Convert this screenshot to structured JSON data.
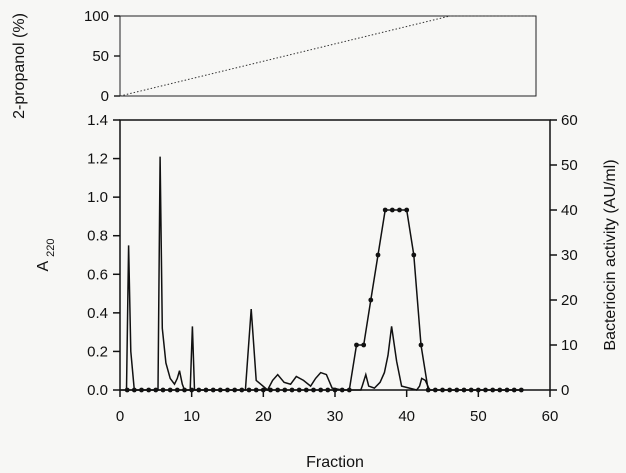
{
  "chart_data": [
    {
      "type": "line",
      "panel": "top",
      "ylabel": "2-propanol (%)",
      "ylim": [
        0,
        100
      ],
      "yticks": [
        "0",
        "50",
        "100"
      ],
      "xlim": [
        0,
        58
      ],
      "grid": false,
      "series": [
        {
          "style": "dotted",
          "x": [
            0,
            46,
            58
          ],
          "y": [
            0,
            100,
            100
          ]
        }
      ]
    },
    {
      "type": "line",
      "panel": "bottom",
      "xlabel": "Fraction",
      "ylabel": "A",
      "ylabel_subscript": "220",
      "y2label": "Bacteriocin activity (AU/ml)",
      "xlim": [
        0,
        60
      ],
      "ylim": [
        0,
        1.4
      ],
      "y2lim": [
        0,
        60
      ],
      "xticks": [
        "0",
        "10",
        "20",
        "30",
        "40",
        "50",
        "60"
      ],
      "yticks": [
        "0.0",
        "0.2",
        "0.4",
        "0.6",
        "0.8",
        "1.0",
        "1.2",
        "1.4"
      ],
      "y2ticks": [
        "0",
        "10",
        "20",
        "30",
        "40",
        "50",
        "60"
      ],
      "grid": false,
      "series": [
        {
          "axis": "left",
          "style": "line",
          "x": [
            0,
            0.9,
            1.2,
            1.5,
            2.0,
            5.3,
            5.6,
            5.9,
            6.4,
            7.0,
            7.6,
            8.0,
            8.3,
            8.7,
            9.0,
            9.8,
            10.1,
            10.4,
            17.5,
            18.3,
            19.0,
            20.6,
            21.3,
            22.0,
            22.9,
            23.8,
            24.6,
            25.6,
            26.6,
            27.3,
            28.0,
            28.8,
            29.6,
            31.0,
            33.6,
            33.8,
            34.3,
            34.7,
            35.5,
            36.3,
            36.9,
            37.4,
            37.9,
            38.6,
            39.3,
            41.4,
            41.8,
            42.1,
            42.6,
            43.2,
            56
          ],
          "y": [
            0,
            0,
            0.75,
            0.2,
            0,
            0,
            1.21,
            0.32,
            0.14,
            0.06,
            0.03,
            0.06,
            0.1,
            0.03,
            0,
            0,
            0.33,
            0,
            0,
            0.42,
            0.05,
            0,
            0.05,
            0.08,
            0.04,
            0.03,
            0.07,
            0.05,
            0.02,
            0.06,
            0.09,
            0.08,
            0.01,
            0,
            0,
            0.02,
            0.08,
            0.02,
            0.01,
            0.04,
            0.09,
            0.18,
            0.33,
            0.15,
            0.02,
            0,
            0.02,
            0.06,
            0.05,
            0,
            0
          ]
        },
        {
          "axis": "right",
          "style": "line-markers",
          "x": [
            1,
            2,
            3,
            4,
            5,
            6,
            7,
            8,
            9,
            10,
            11,
            12,
            13,
            14,
            15,
            16,
            17,
            18,
            19,
            20,
            21,
            22,
            23,
            24,
            25,
            26,
            27,
            28,
            29,
            30,
            31,
            32,
            33,
            34,
            35,
            36,
            37,
            38,
            39,
            40,
            41,
            42,
            43,
            44,
            45,
            46,
            47,
            48,
            49,
            50,
            51,
            52,
            53,
            54,
            55,
            56
          ],
          "y": [
            0,
            0,
            0,
            0,
            0,
            0,
            0,
            0,
            0,
            0,
            0,
            0,
            0,
            0,
            0,
            0,
            0,
            0,
            0,
            0,
            0,
            0,
            0,
            0,
            0,
            0,
            0,
            0,
            0,
            0,
            0,
            0,
            10,
            10,
            20,
            30,
            40,
            40,
            40,
            40,
            30,
            10,
            0,
            0,
            0,
            0,
            0,
            0,
            0,
            0,
            0,
            0,
            0,
            0,
            0,
            0
          ]
        }
      ]
    }
  ]
}
